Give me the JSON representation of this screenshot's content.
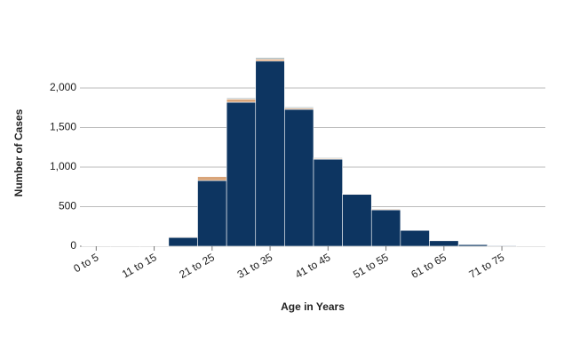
{
  "chart_data": {
    "type": "stacked-bar",
    "x_label": "Age in Years",
    "y_label": "Number of Cases",
    "categories": [
      "0 to 5",
      null,
      "11 to 15",
      null,
      "21 to 25",
      null,
      "31 to 35",
      null,
      "41 to 45",
      null,
      "51 to 55",
      null,
      "61 to 65",
      null,
      "71 to 75",
      null
    ],
    "series": [
      {
        "color": "#0d3561",
        "values": [
          3,
          3,
          5,
          110,
          830,
          1820,
          2340,
          1730,
          1100,
          655,
          460,
          200,
          70,
          20,
          8,
          3
        ]
      },
      {
        "color": "#d9a57a",
        "values": [
          0,
          0,
          0,
          8,
          50,
          40,
          25,
          15,
          10,
          8,
          10,
          3,
          2,
          0,
          0,
          0
        ]
      },
      {
        "color": "#a7b5b8",
        "values": [
          0,
          0,
          0,
          0,
          5,
          15,
          20,
          15,
          10,
          4,
          5,
          2,
          1,
          0,
          0,
          0
        ]
      }
    ],
    "ylim": [
      0,
      2400
    ],
    "yticks": [
      0,
      500,
      {
        "value": 1000,
        "label": "1,000"
      },
      {
        "value": 1500,
        "label": "1,500"
      },
      {
        "value": 2000,
        "label": "2,000"
      }
    ],
    "grid": true
  }
}
